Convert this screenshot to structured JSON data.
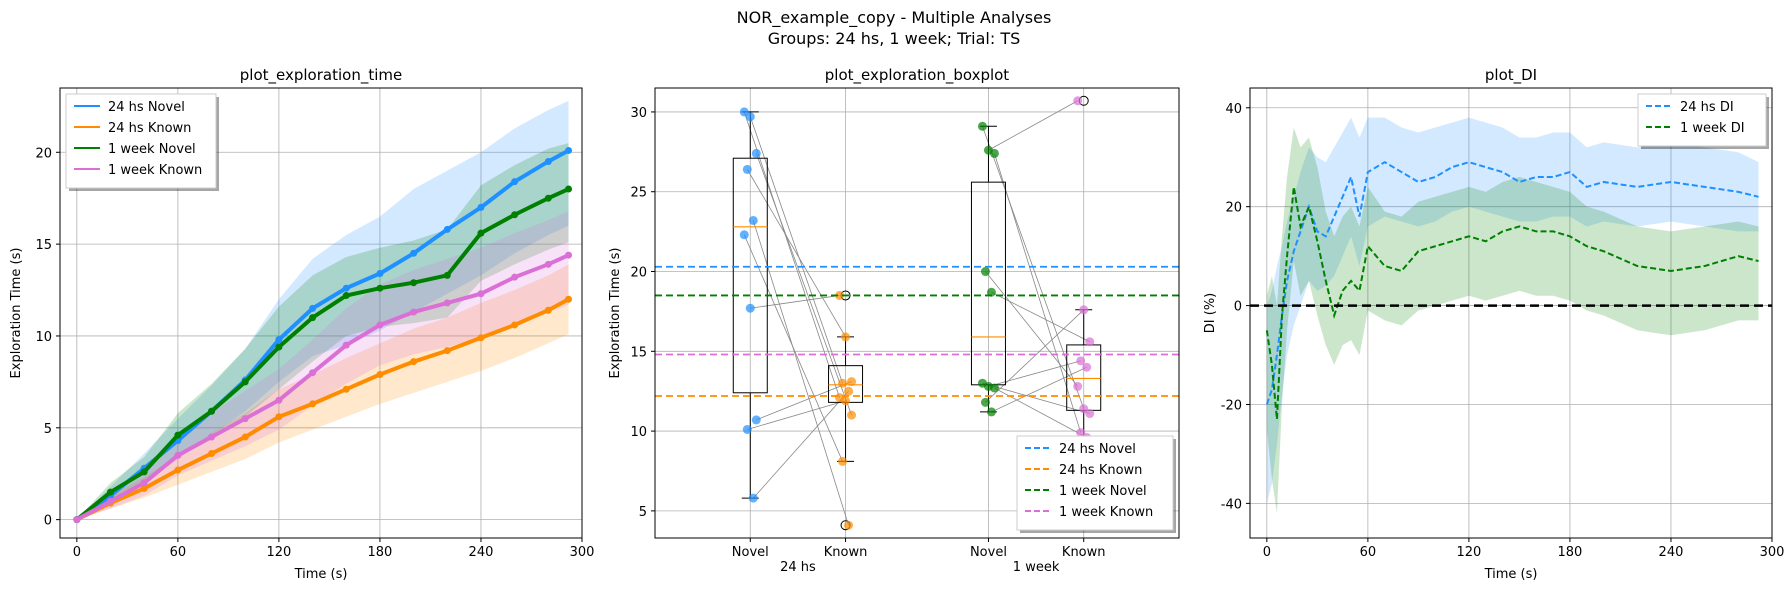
{
  "figure": {
    "title_line1": "NOR_example_copy - Multiple Analyses",
    "title_line2": "Groups: 24 hs, 1 week; Trial: TS"
  },
  "colors": {
    "blue": "#1e90ff",
    "orange": "#ff8c00",
    "green": "#008000",
    "orchid": "#da70d6",
    "grid": "#b0b0b0"
  },
  "chart_data": [
    {
      "type": "line",
      "title": "plot_exploration_time",
      "xlabel": "Time (s)",
      "ylabel": "Exploration Time (s)",
      "xlim": [
        -10,
        300
      ],
      "ylim": [
        -1,
        23.5
      ],
      "xticks": [
        0,
        60,
        120,
        180,
        240,
        300
      ],
      "yticks": [
        0,
        5,
        10,
        15,
        20
      ],
      "grid": true,
      "legend_position": "top-left",
      "series": [
        {
          "name": "24 hs Novel",
          "color": "#1e90ff",
          "x": [
            0,
            20,
            40,
            60,
            80,
            100,
            120,
            140,
            160,
            180,
            200,
            220,
            240,
            260,
            280,
            292
          ],
          "y": [
            0,
            1.3,
            2.8,
            4.3,
            5.9,
            7.6,
            9.8,
            11.5,
            12.6,
            13.4,
            14.5,
            15.8,
            17.0,
            18.4,
            19.5,
            20.1
          ],
          "band": [
            [
              0,
              0
            ],
            [
              0.9,
              1.8
            ],
            [
              2.0,
              3.6
            ],
            [
              3.3,
              5.5
            ],
            [
              4.6,
              7.3
            ],
            [
              5.9,
              9.3
            ],
            [
              7.5,
              12.0
            ],
            [
              8.9,
              14.2
            ],
            [
              9.5,
              15.5
            ],
            [
              10.3,
              16.5
            ],
            [
              11.3,
              18.0
            ],
            [
              12.3,
              19.0
            ],
            [
              13.3,
              20.0
            ],
            [
              14.5,
              21.3
            ],
            [
              15.5,
              22.3
            ],
            [
              16.0,
              22.8
            ]
          ]
        },
        {
          "name": "24 hs Known",
          "color": "#ff8c00",
          "x": [
            0,
            20,
            40,
            60,
            80,
            100,
            120,
            140,
            160,
            180,
            200,
            220,
            240,
            260,
            280,
            292
          ],
          "y": [
            0,
            0.9,
            1.7,
            2.7,
            3.6,
            4.5,
            5.6,
            6.3,
            7.1,
            7.9,
            8.6,
            9.2,
            9.9,
            10.6,
            11.4,
            12.0
          ],
          "band": [
            [
              0,
              0
            ],
            [
              0.6,
              1.3
            ],
            [
              1.2,
              2.3
            ],
            [
              1.9,
              3.5
            ],
            [
              2.6,
              4.7
            ],
            [
              3.3,
              5.8
            ],
            [
              4.2,
              7.1
            ],
            [
              4.9,
              7.9
            ],
            [
              5.6,
              8.8
            ],
            [
              6.3,
              9.6
            ],
            [
              6.9,
              10.4
            ],
            [
              7.5,
              11.0
            ],
            [
              8.1,
              11.8
            ],
            [
              8.8,
              12.5
            ],
            [
              9.6,
              13.3
            ],
            [
              10.1,
              13.9
            ]
          ]
        },
        {
          "name": "1 week Novel",
          "color": "#008000",
          "x": [
            0,
            20,
            40,
            60,
            80,
            100,
            120,
            140,
            160,
            180,
            200,
            220,
            240,
            260,
            280,
            292
          ],
          "y": [
            0,
            1.5,
            2.6,
            4.6,
            5.9,
            7.5,
            9.4,
            11.0,
            12.2,
            12.6,
            12.9,
            13.3,
            15.6,
            16.6,
            17.5,
            18.0
          ],
          "band": [
            [
              0,
              0
            ],
            [
              1.0,
              2.0
            ],
            [
              1.9,
              3.4
            ],
            [
              3.4,
              5.8
            ],
            [
              4.4,
              7.4
            ],
            [
              5.6,
              9.3
            ],
            [
              7.1,
              11.6
            ],
            [
              8.6,
              13.3
            ],
            [
              10.0,
              14.3
            ],
            [
              10.5,
              14.8
            ],
            [
              10.7,
              15.2
            ],
            [
              11.0,
              15.8
            ],
            [
              13.0,
              18.2
            ],
            [
              13.9,
              19.3
            ],
            [
              14.7,
              20.2
            ],
            [
              15.1,
              20.5
            ]
          ]
        },
        {
          "name": "1 week Known",
          "color": "#da70d6",
          "x": [
            0,
            20,
            40,
            60,
            80,
            100,
            120,
            140,
            160,
            180,
            200,
            220,
            240,
            260,
            280,
            292
          ],
          "y": [
            0,
            1.0,
            2.0,
            3.5,
            4.5,
            5.5,
            6.5,
            8.0,
            9.5,
            10.6,
            11.3,
            11.8,
            12.3,
            13.2,
            13.9,
            14.4
          ],
          "band": [
            [
              0,
              0
            ],
            [
              0.6,
              1.5
            ],
            [
              1.3,
              2.8
            ],
            [
              2.4,
              4.6
            ],
            [
              3.2,
              5.8
            ],
            [
              4.0,
              7.0
            ],
            [
              4.9,
              8.2
            ],
            [
              6.2,
              9.8
            ],
            [
              7.4,
              11.5
            ],
            [
              8.4,
              12.8
            ],
            [
              9.0,
              13.6
            ],
            [
              9.4,
              14.2
            ],
            [
              9.9,
              14.8
            ],
            [
              10.6,
              15.6
            ],
            [
              11.3,
              16.3
            ],
            [
              11.7,
              16.8
            ]
          ]
        }
      ]
    },
    {
      "type": "box",
      "title": "plot_exploration_boxplot",
      "xlabel": "",
      "ylabel": "Exploration Time (s)",
      "ylim": [
        3.3,
        31.5
      ],
      "yticks": [
        5,
        10,
        15,
        20,
        25,
        30
      ],
      "grid": true,
      "legend_position": "bottom-right",
      "categories": [
        "Novel",
        "Known",
        "Novel",
        "Known"
      ],
      "group_labels": [
        "24 hs",
        "1 week"
      ],
      "boxes": [
        {
          "pos": 1,
          "q1": 12.4,
          "median": 22.8,
          "q3": 27.1,
          "whislo": 5.8,
          "whishi": 30.0,
          "fliers": [],
          "color": "#1e90ff",
          "points": [
            30.0,
            29.7,
            27.4,
            26.4,
            23.2,
            22.3,
            17.7,
            10.7,
            10.1,
            5.8
          ]
        },
        {
          "pos": 2,
          "q1": 11.8,
          "median": 12.9,
          "q3": 14.1,
          "whislo": 8.1,
          "whishi": 15.9,
          "fliers": [
            18.5,
            4.1
          ],
          "color": "#ff8c00",
          "points": [
            18.5,
            15.9,
            13.1,
            13.0,
            12.5,
            12.1,
            11.9,
            11.0,
            8.1,
            4.1
          ]
        },
        {
          "pos": 3.5,
          "q1": 12.9,
          "median": 15.9,
          "q3": 25.6,
          "whislo": 11.2,
          "whishi": 29.1,
          "fliers": [],
          "color": "#008000",
          "points": [
            29.1,
            27.6,
            27.4,
            20.0,
            18.7,
            13.0,
            12.8,
            12.7,
            11.8,
            11.2
          ]
        },
        {
          "pos": 4.5,
          "q1": 11.3,
          "median": 13.3,
          "q3": 15.4,
          "whislo": 9.6,
          "whishi": 17.6,
          "fliers": [
            30.7
          ],
          "color": "#da70d6",
          "points": [
            30.7,
            17.6,
            15.6,
            14.4,
            14.0,
            12.8,
            11.4,
            11.1,
            9.9,
            9.6
          ]
        }
      ],
      "pair_links": [
        [
          0,
          5
        ],
        [
          1,
          3
        ],
        [
          2,
          7
        ],
        [
          3,
          1
        ],
        [
          4,
          9
        ],
        [
          5,
          8
        ],
        [
          6,
          0
        ],
        [
          7,
          2
        ],
        [
          8,
          6
        ],
        [
          9,
          4
        ],
        [
          0,
          6
        ],
        [
          1,
          0
        ],
        [
          2,
          8
        ],
        [
          3,
          5
        ],
        [
          4,
          2
        ],
        [
          5,
          7
        ],
        [
          6,
          3
        ],
        [
          7,
          9
        ],
        [
          8,
          1
        ],
        [
          9,
          4
        ]
      ],
      "series": [
        {
          "name": "24 hs Novel",
          "mean": 20.3,
          "color": "#1e90ff"
        },
        {
          "name": "24 hs Known",
          "mean": 12.2,
          "color": "#ff8c00"
        },
        {
          "name": "1 week Novel",
          "mean": 18.5,
          "color": "#008000"
        },
        {
          "name": "1 week Known",
          "mean": 14.8,
          "color": "#da70d6"
        }
      ]
    },
    {
      "type": "line",
      "title": "plot_DI",
      "xlabel": "Time (s)",
      "ylabel": "DI (%)",
      "xlim": [
        -10,
        300
      ],
      "ylim": [
        -47,
        44
      ],
      "xticks": [
        0,
        60,
        120,
        180,
        240,
        300
      ],
      "yticks": [
        -40,
        -20,
        0,
        20,
        40
      ],
      "grid": true,
      "legend_position": "top-right",
      "series": [
        {
          "name": "24 hs DI",
          "color": "#1e90ff",
          "x": [
            0,
            3,
            6,
            9,
            12,
            16,
            20,
            25,
            30,
            35,
            40,
            45,
            50,
            55,
            60,
            70,
            80,
            90,
            100,
            110,
            120,
            130,
            140,
            150,
            160,
            170,
            180,
            190,
            200,
            220,
            240,
            260,
            280,
            292
          ],
          "y": [
            -20,
            -17,
            -10,
            -2,
            5,
            11,
            15,
            20,
            15,
            14,
            18,
            22,
            26,
            18,
            27,
            29,
            27,
            25,
            26,
            28,
            29,
            28,
            27,
            25,
            26,
            26,
            27,
            24,
            25,
            24,
            25,
            24,
            23,
            22
          ],
          "band": [
            [
              -40,
              0
            ],
            [
              -36,
              3
            ],
            [
              -28,
              8
            ],
            [
              -18,
              12
            ],
            [
              -10,
              17
            ],
            [
              -4,
              22
            ],
            [
              0,
              27
            ],
            [
              5,
              32
            ],
            [
              3,
              30
            ],
            [
              4,
              29
            ],
            [
              6,
              32
            ],
            [
              10,
              35
            ],
            [
              14,
              38
            ],
            [
              8,
              34
            ],
            [
              16,
              38
            ],
            [
              18,
              38
            ],
            [
              17,
              36
            ],
            [
              16,
              35
            ],
            [
              17,
              36
            ],
            [
              19,
              37
            ],
            [
              20,
              38
            ],
            [
              19,
              37
            ],
            [
              18,
              36
            ],
            [
              17,
              34
            ],
            [
              17,
              34
            ],
            [
              18,
              35
            ],
            [
              18,
              35
            ],
            [
              16,
              32
            ],
            [
              17,
              33
            ],
            [
              16,
              32
            ],
            [
              17,
              33
            ],
            [
              16,
              32
            ],
            [
              15,
              31
            ],
            [
              15,
              29
            ]
          ]
        },
        {
          "name": "1 week DI",
          "color": "#008000",
          "x": [
            0,
            3,
            6,
            9,
            12,
            16,
            20,
            25,
            30,
            35,
            40,
            45,
            50,
            55,
            60,
            70,
            80,
            90,
            100,
            110,
            120,
            130,
            140,
            150,
            160,
            170,
            180,
            190,
            200,
            220,
            240,
            260,
            280,
            292
          ],
          "y": [
            -5,
            -12,
            -23,
            -2,
            10,
            24,
            16,
            20,
            13,
            5,
            -2,
            3,
            5,
            3,
            12,
            8,
            7,
            11,
            12,
            13,
            14,
            13,
            15,
            16,
            15,
            15,
            14,
            12,
            11,
            8,
            7,
            8,
            10,
            9
          ],
          "band": [
            [
              -25,
              2
            ],
            [
              -35,
              6
            ],
            [
              -42,
              0
            ],
            [
              -20,
              14
            ],
            [
              -5,
              26
            ],
            [
              9,
              36
            ],
            [
              2,
              32
            ],
            [
              5,
              34
            ],
            [
              -2,
              28
            ],
            [
              -8,
              19
            ],
            [
              -12,
              14
            ],
            [
              -8,
              18
            ],
            [
              -7,
              20
            ],
            [
              -10,
              16
            ],
            [
              -1,
              24
            ],
            [
              -3,
              19
            ],
            [
              -4,
              18
            ],
            [
              -1,
              21
            ],
            [
              0,
              22
            ],
            [
              1,
              23
            ],
            [
              2,
              24
            ],
            [
              1,
              23
            ],
            [
              2,
              25
            ],
            [
              3,
              26
            ],
            [
              2,
              25
            ],
            [
              2,
              24
            ],
            [
              1,
              23
            ],
            [
              -1,
              20
            ],
            [
              -2,
              19
            ],
            [
              -5,
              16
            ],
            [
              -6,
              15
            ],
            [
              -5,
              16
            ],
            [
              -3,
              17
            ],
            [
              -3,
              16
            ]
          ]
        }
      ]
    }
  ]
}
